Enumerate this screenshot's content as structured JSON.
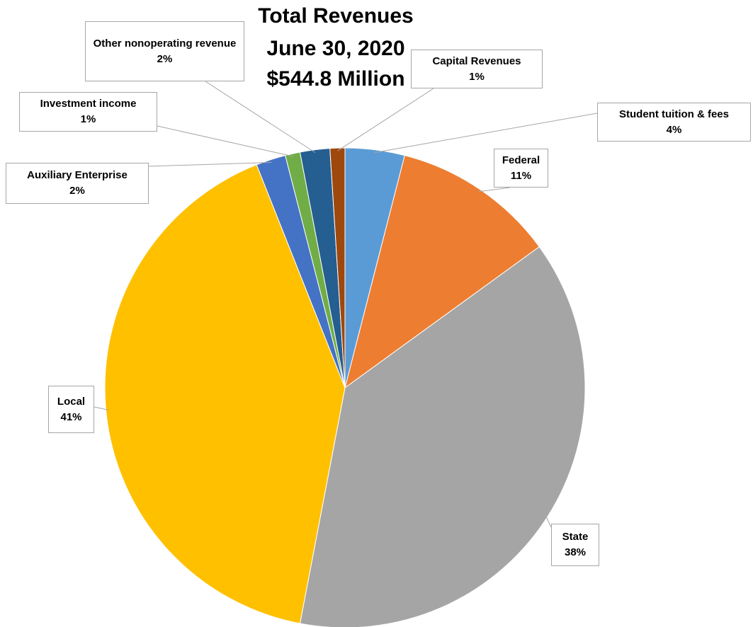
{
  "chart_data": {
    "type": "pie",
    "title": [
      "Total Revenues",
      "June 30, 2020",
      "$544.8 Million"
    ],
    "categories": [
      "Student tuition & fees",
      "Federal",
      "State",
      "Local",
      "Auxiliary Enterprise",
      "Investment income",
      "Other nonoperating revenue",
      "Capital Revenues"
    ],
    "values": [
      4,
      11,
      38,
      41,
      2,
      1,
      2,
      1
    ],
    "value_labels": [
      "4%",
      "11%",
      "38%",
      "41%",
      "2%",
      "1%",
      "2%",
      "1%"
    ],
    "colors": [
      "#5b9bd5",
      "#ed7d31",
      "#a5a5a5",
      "#ffc000",
      "#4472c4",
      "#70ad47",
      "#255e91",
      "#9e480e"
    ]
  }
}
